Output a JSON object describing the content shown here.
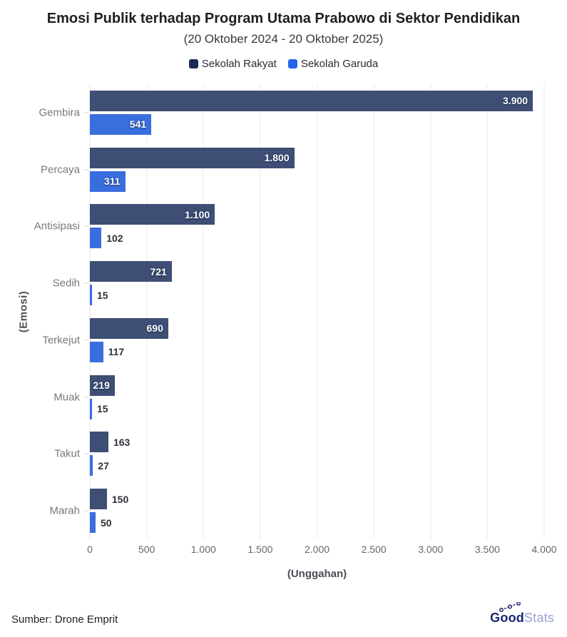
{
  "header": {
    "title": "Emosi Publik terhadap Program Utama Prabowo di Sektor Pendidikan",
    "subtitle": "(20 Oktober 2024 - 20 Oktober 2025)"
  },
  "legend": [
    {
      "label": "Sekolah Rakyat",
      "color": "#1a2b57"
    },
    {
      "label": "Sekolah Garuda",
      "color": "#2563eb"
    }
  ],
  "chart_data": {
    "type": "bar",
    "orientation": "horizontal",
    "title": "Emosi Publik terhadap Program Utama Prabowo di Sektor Pendidikan",
    "subtitle": "(20 Oktober 2024 - 20 Oktober 2025)",
    "categories": [
      "Gembira",
      "Percaya",
      "Antisipasi",
      "Sedih",
      "Terkejut",
      "Muak",
      "Takut",
      "Marah"
    ],
    "series": [
      {
        "name": "Sekolah Rakyat",
        "color": "#3e4e75",
        "values": [
          3900,
          1800,
          1100,
          721,
          690,
          219,
          163,
          150
        ],
        "labels": [
          "3.900",
          "1.800",
          "1.100",
          "721",
          "690",
          "219",
          "163",
          "150"
        ]
      },
      {
        "name": "Sekolah Garuda",
        "color": "#3a6ede",
        "values": [
          541,
          311,
          102,
          15,
          117,
          15,
          27,
          50
        ],
        "labels": [
          "541",
          "311",
          "102",
          "15",
          "117",
          "15",
          "27",
          "50"
        ]
      }
    ],
    "xlabel": "(Unggahan)",
    "ylabel": "(Emosi)",
    "xlim": [
      0,
      4000
    ],
    "x_ticks": [
      0,
      500,
      1000,
      1500,
      2000,
      2500,
      3000,
      3500,
      4000
    ],
    "x_tick_labels": [
      "0",
      "500",
      "1.000",
      "1.500",
      "2.000",
      "2.500",
      "3.000",
      "3.500",
      "4.000"
    ],
    "grid": true,
    "legend_position": "top"
  },
  "footer": {
    "source": "Sumber: Drone Emprit",
    "logo": {
      "bold": "Good",
      "light": "Stats"
    }
  }
}
